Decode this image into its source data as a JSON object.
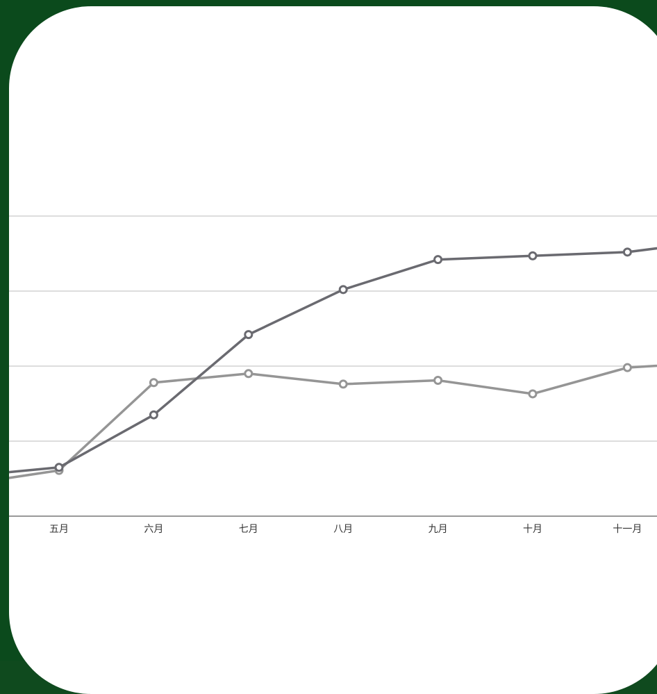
{
  "colors": {
    "background": "#0b4a1c",
    "card": "#ffffff",
    "gridline": "#dddddd",
    "axis": "#999999",
    "series_dark": "#6a6a70",
    "series_light": "#959595"
  },
  "chart_data": {
    "type": "line",
    "title": "",
    "xlabel": "",
    "ylabel": "",
    "categories": [
      "五月",
      "六月",
      "七月",
      "八月",
      "九月",
      "十月",
      "十一月"
    ],
    "ylim": [
      0,
      40
    ],
    "grid": true,
    "series": [
      {
        "color": "#6a6a70",
        "values": [
          6.5,
          13.5,
          24.2,
          30.2,
          34.2,
          34.7,
          35.2
        ],
        "edge_before": 5.3,
        "edge_after": 36.8
      },
      {
        "color": "#959595",
        "values": [
          6.1,
          17.8,
          19.0,
          17.6,
          18.1,
          16.3,
          19.8
        ],
        "edge_before": 4.2,
        "edge_after": 20.6
      }
    ]
  }
}
